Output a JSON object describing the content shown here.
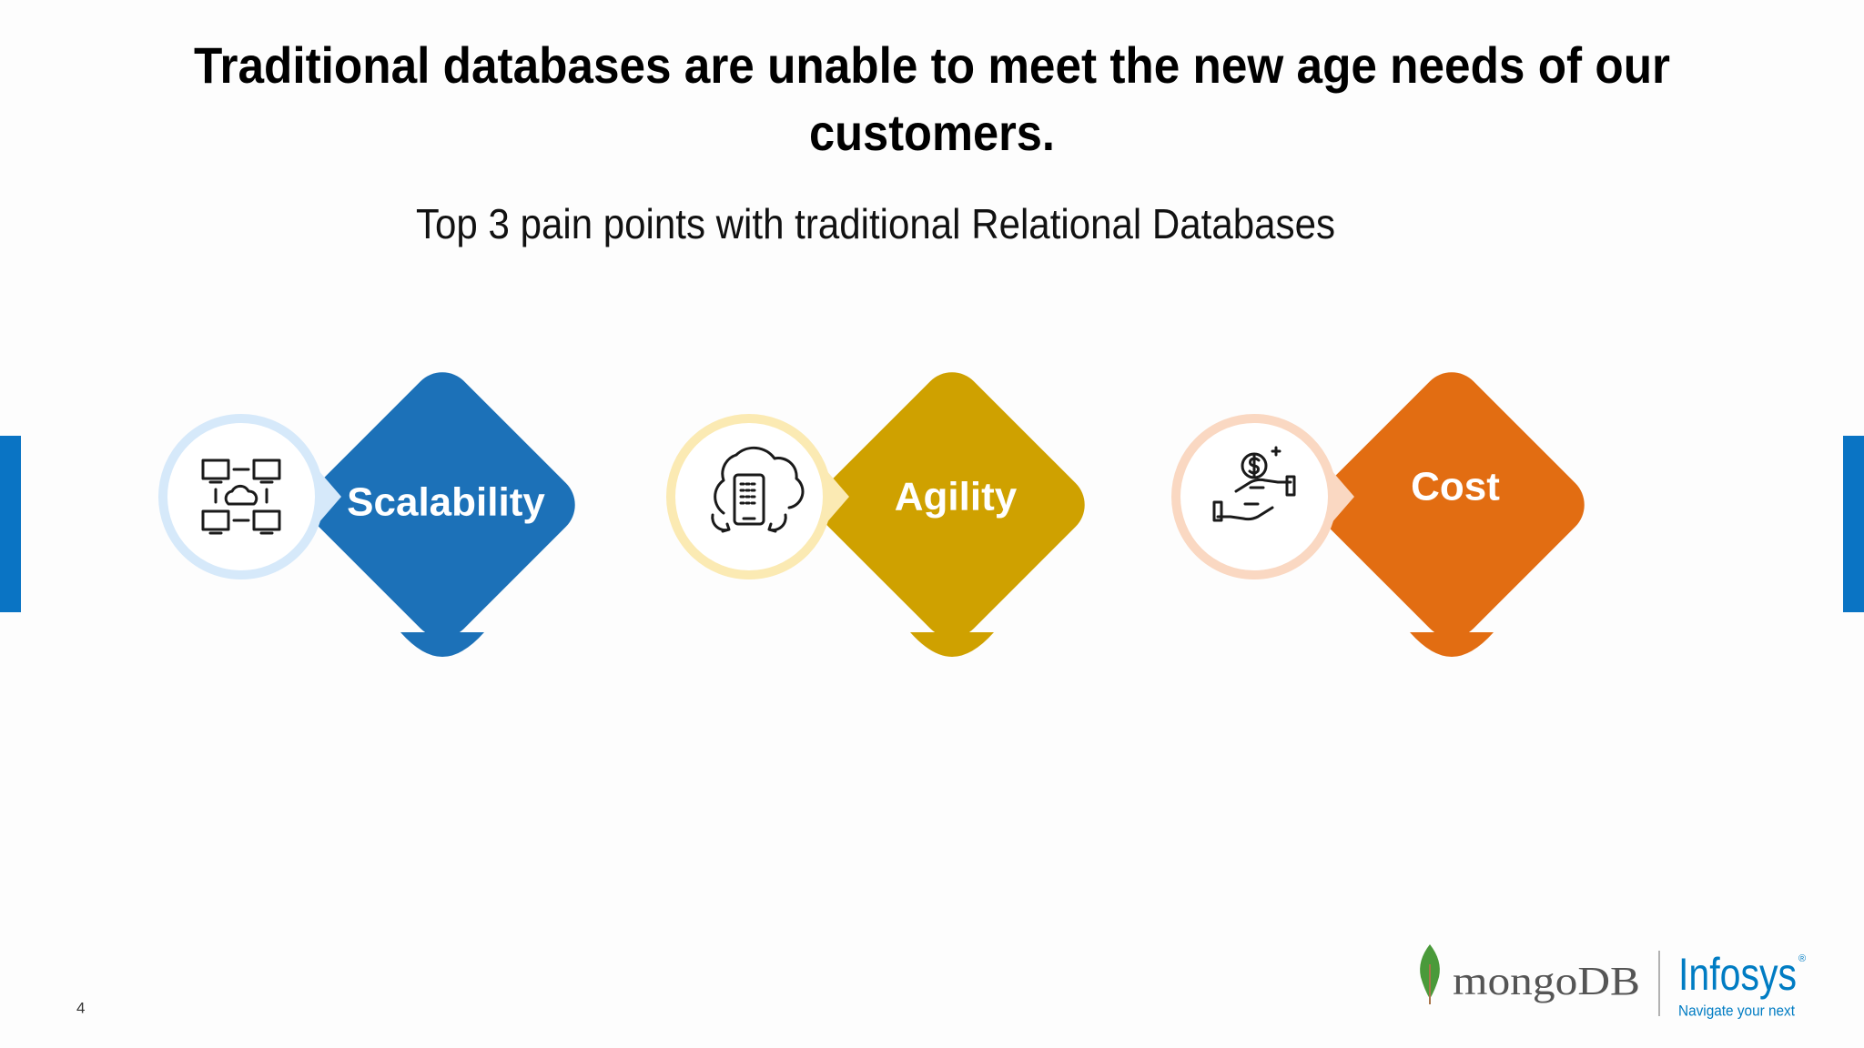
{
  "header": {
    "title": [
      "Traditional databases are unable to meet the new age needs of our",
      "customers."
    ],
    "subtitle": "Top 3 pain points with traditional Relational Databases"
  },
  "pain_points": [
    {
      "label": "Scalability",
      "color": "#1c71b8",
      "ring": "#d6e9fa"
    },
    {
      "label": "Agility",
      "color": "#cfa100",
      "ring": "#fbeab3"
    },
    {
      "label": "Cost",
      "color": "#e26d12",
      "ring": "#fad8c2"
    }
  ],
  "footer": {
    "page_number": "4",
    "mongodb": "mongoDB",
    "infosys": "Infosys",
    "registered": "®",
    "tagline": "Navigate your next"
  }
}
